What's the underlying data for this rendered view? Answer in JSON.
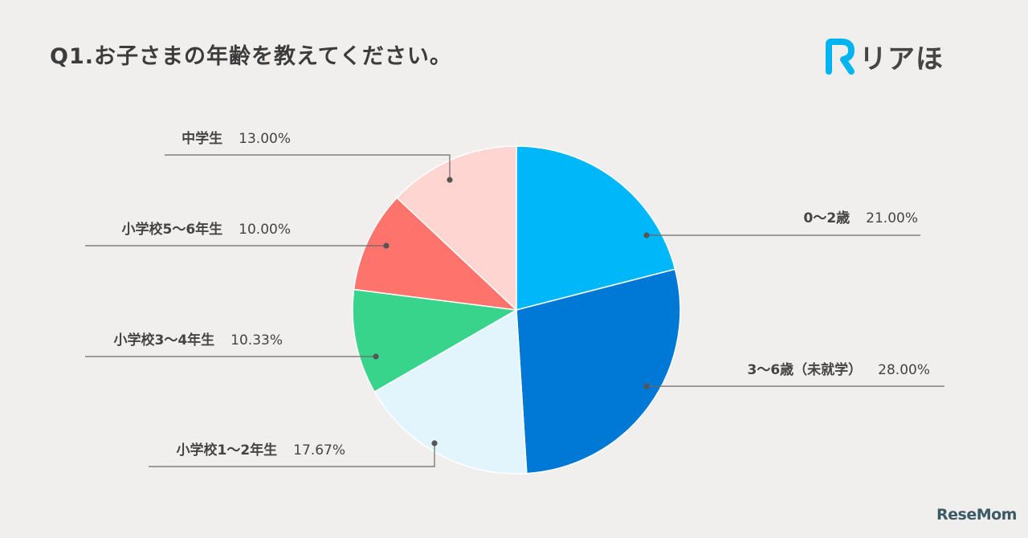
{
  "title": "Q1.お子さまの年齢を教えてください。",
  "brand": {
    "logo_letter": "R",
    "name": "リアほ"
  },
  "watermark": "ReseMom",
  "colors": {
    "background": "#f0efed",
    "leader_line": "#6a6a6a",
    "brand_accent": "#00b4f0"
  },
  "chart_data": {
    "type": "pie",
    "title": "Q1.お子さまの年齢を教えてください。",
    "start_angle_deg": 0,
    "direction": "clockwise",
    "slices": [
      {
        "label": "0〜2歳",
        "value": 21.0,
        "display": "21.00%",
        "color": "#00b7fa"
      },
      {
        "label": "3〜6歳（未就学）",
        "value": 28.0,
        "display": "28.00%",
        "color": "#0078d6"
      },
      {
        "label": "小学校1〜2年生",
        "value": 17.67,
        "display": "17.67%",
        "color": "#e3f5fc"
      },
      {
        "label": "小学校3〜4年生",
        "value": 10.33,
        "display": "10.33%",
        "color": "#38d48c"
      },
      {
        "label": "小学校5〜6年生",
        "value": 10.0,
        "display": "10.00%",
        "color": "#ff736d"
      },
      {
        "label": "中学生",
        "value": 13.0,
        "display": "13.00%",
        "color": "#ffd5d2"
      }
    ]
  }
}
